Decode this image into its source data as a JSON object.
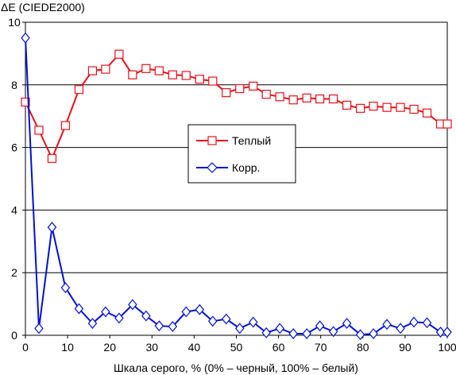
{
  "chart_data": {
    "type": "line",
    "title": "",
    "ylabel": "ΔE (CIEDE2000)",
    "xlabel": "Шкала серого, % (0% – черный, 100% – белый)",
    "xlim": [
      0,
      100
    ],
    "ylim": [
      0,
      10
    ],
    "xticks": [
      "0",
      "10",
      "20",
      "30",
      "40",
      "50",
      "60",
      "70",
      "80",
      "90",
      "100"
    ],
    "yticks": [
      "0",
      "2",
      "4",
      "6",
      "8",
      "10"
    ],
    "grid": "horizontal",
    "legend_position": "center-right",
    "x": [
      0,
      3.2,
      6.3,
      9.5,
      12.7,
      15.9,
      19.0,
      22.2,
      25.4,
      28.6,
      31.7,
      34.9,
      38.1,
      41.3,
      44.4,
      47.6,
      50.8,
      54.0,
      57.1,
      60.3,
      63.5,
      66.7,
      69.8,
      73.0,
      76.2,
      79.4,
      82.5,
      85.7,
      88.9,
      92.1,
      95.2,
      98.4,
      100
    ],
    "series": [
      {
        "name": "Теплый",
        "color": "#e8101a",
        "marker": "square",
        "values": [
          7.45,
          6.55,
          5.65,
          6.7,
          7.85,
          8.45,
          8.5,
          8.98,
          8.32,
          8.52,
          8.45,
          8.32,
          8.3,
          8.18,
          8.12,
          7.75,
          7.88,
          7.96,
          7.7,
          7.62,
          7.52,
          7.58,
          7.55,
          7.55,
          7.35,
          7.25,
          7.32,
          7.28,
          7.28,
          7.22,
          7.1,
          6.75,
          6.75
        ]
      },
      {
        "name": "Корр.",
        "color": "#0010d0",
        "marker": "diamond",
        "values": [
          9.5,
          0.22,
          3.45,
          1.52,
          0.85,
          0.38,
          0.75,
          0.55,
          0.98,
          0.62,
          0.3,
          0.28,
          0.75,
          0.82,
          0.45,
          0.52,
          0.22,
          0.42,
          0.08,
          0.22,
          0.05,
          0.05,
          0.3,
          0.12,
          0.38,
          0.02,
          0.05,
          0.35,
          0.22,
          0.42,
          0.4,
          0.1,
          0.1
        ]
      }
    ]
  }
}
